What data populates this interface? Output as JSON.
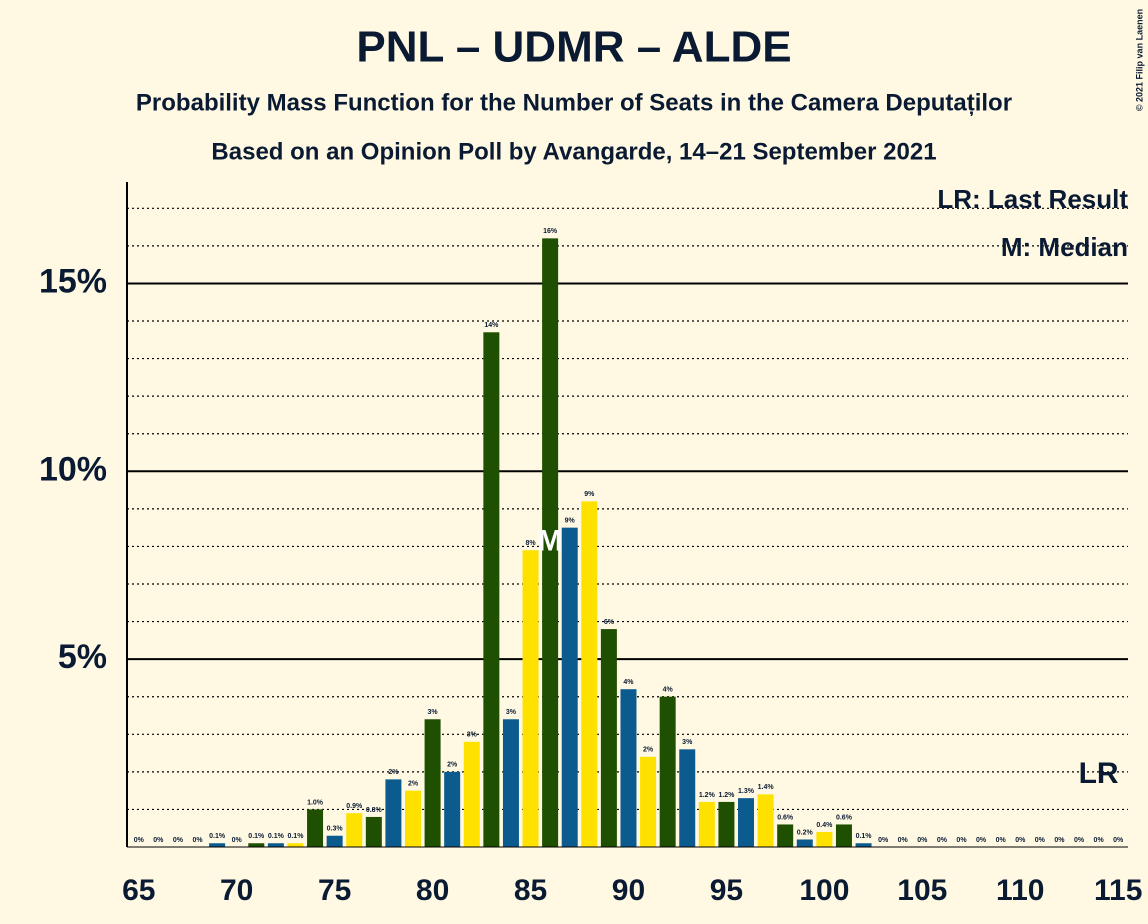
{
  "chart_data": {
    "type": "bar",
    "title": "PNL – UDMR – ALDE",
    "subtitle": "Probability Mass Function for the Number of Seats in the Camera Deputaților",
    "subtitle2": "Based on an Opinion Poll by Avangarde, 14–21 September 2021",
    "copyright": "© 2021 Filip van Laenen",
    "legend": [
      "LR: Last Result",
      "M: Median"
    ],
    "x": [
      65,
      66,
      67,
      68,
      69,
      70,
      71,
      72,
      73,
      74,
      75,
      76,
      77,
      78,
      79,
      80,
      81,
      82,
      83,
      84,
      85,
      86,
      87,
      88,
      89,
      90,
      91,
      92,
      93,
      94,
      95,
      96,
      97,
      98,
      99,
      100,
      101,
      102,
      103,
      104,
      105,
      106,
      107,
      108,
      109,
      110,
      111,
      112,
      113,
      114,
      115
    ],
    "values": [
      0,
      0,
      0,
      0,
      0.1,
      0,
      0.1,
      0.1,
      0.1,
      1.0,
      0.3,
      0.9,
      0.8,
      1.8,
      1.5,
      3.4,
      2.0,
      2.8,
      13.7,
      3.4,
      7.9,
      16.2,
      8.5,
      9.2,
      5.8,
      4.2,
      2.4,
      4.0,
      2.6,
      1.2,
      1.2,
      1.3,
      1.4,
      0.6,
      0.2,
      0.4,
      0.6,
      0.1,
      0,
      0,
      0,
      0,
      0,
      0,
      0,
      0,
      0,
      0,
      0,
      0,
      0
    ],
    "value_labels": [
      "0%",
      "0%",
      "0%",
      "0%",
      "0.1%",
      "0%",
      "0.1%",
      "0.1%",
      "0.1%",
      "1.0%",
      "0.3%",
      "0.9%",
      "0.8%",
      "2%",
      "2%",
      "3%",
      "2%",
      "3%",
      "14%",
      "3%",
      "8%",
      "16%",
      "9%",
      "9%",
      "6%",
      "4%",
      "2%",
      "4%",
      "3%",
      "1.2%",
      "1.2%",
      "1.3%",
      "1.4%",
      "0.6%",
      "0.2%",
      "0.4%",
      "0.6%",
      "0.1%",
      "0%",
      "0%",
      "0%",
      "0%",
      "0%",
      "0%",
      "0%",
      "0%",
      "0%",
      "0%",
      "0%",
      "0%",
      "0%"
    ],
    "colors": [
      "#0c5b8f",
      "#ffe100",
      "#1f4f00"
    ],
    "xlim": [
      64.4,
      115.5
    ],
    "xticks": [
      65,
      70,
      75,
      80,
      85,
      90,
      95,
      100,
      105,
      110,
      115
    ],
    "ylim": [
      0,
      17.7
    ],
    "yticks": [
      {
        "value": 5,
        "label": "5%"
      },
      {
        "value": 10,
        "label": "10%"
      },
      {
        "value": 15,
        "label": "15%"
      }
    ],
    "minor_yticks": [
      1,
      2,
      3,
      4,
      6,
      7,
      8,
      9,
      11,
      12,
      13,
      14,
      16,
      17
    ],
    "median": {
      "x": 86,
      "label": "M"
    },
    "last_result": {
      "x": 114,
      "label": "LR"
    }
  }
}
